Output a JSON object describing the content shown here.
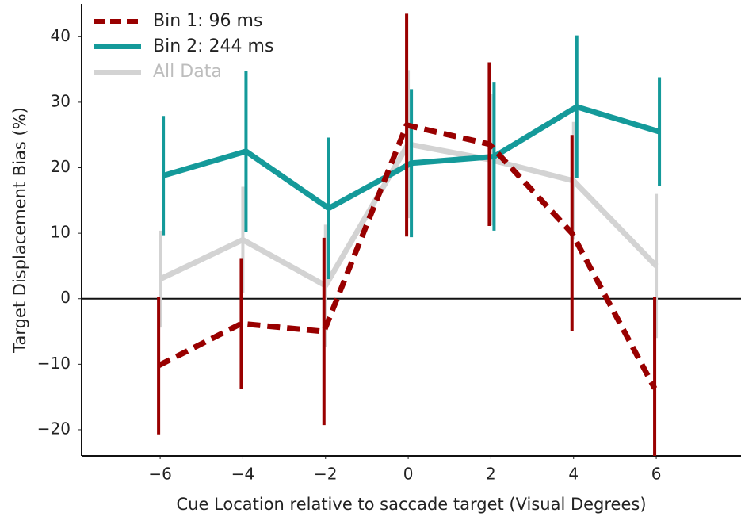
{
  "chart_data": {
    "type": "line",
    "xlabel": "Cue Location relative to saccade target (Visual Degrees)",
    "ylabel": "Target Displacement Bias (%)",
    "x": [
      -6,
      -4,
      -2,
      0,
      2,
      4,
      6
    ],
    "series": [
      {
        "name": "Bin 1: 96 ms",
        "color": "#990000",
        "dashed": true,
        "values": [
          -10.2,
          -3.8,
          -5,
          26.5,
          23.6,
          10,
          -13.7
        ],
        "errors": [
          10.5,
          10,
          14.3,
          17,
          12.5,
          15,
          14
        ]
      },
      {
        "name": "Bin 2: 244 ms",
        "color": "#149a9a",
        "dashed": false,
        "values": [
          18.8,
          22.5,
          13.8,
          20.7,
          21.7,
          29.3,
          25.5
        ],
        "errors": [
          9.1,
          12.3,
          10.8,
          11.3,
          11.3,
          10.9,
          8.3
        ]
      },
      {
        "name": "All Data",
        "color": "#d3d3d3",
        "dashed": false,
        "values": [
          3,
          9,
          2,
          23.6,
          21.2,
          18,
          5
        ],
        "errors": [
          7.4,
          8.1,
          9.3,
          11.3,
          10,
          9,
          11
        ]
      }
    ],
    "xlim": [
      -7.9,
      8.05
    ],
    "ylim": [
      -24,
      45
    ],
    "xticks": [
      {
        "value": -6,
        "label": "−6"
      },
      {
        "value": -4,
        "label": "−4"
      },
      {
        "value": -2,
        "label": "−2"
      },
      0,
      2,
      4,
      6
    ],
    "yticks": [
      {
        "value": -20,
        "label": "−20"
      },
      {
        "value": -10,
        "label": "−10"
      },
      0,
      10,
      20,
      30,
      40
    ],
    "zero_line": true,
    "legend": "upper left"
  }
}
